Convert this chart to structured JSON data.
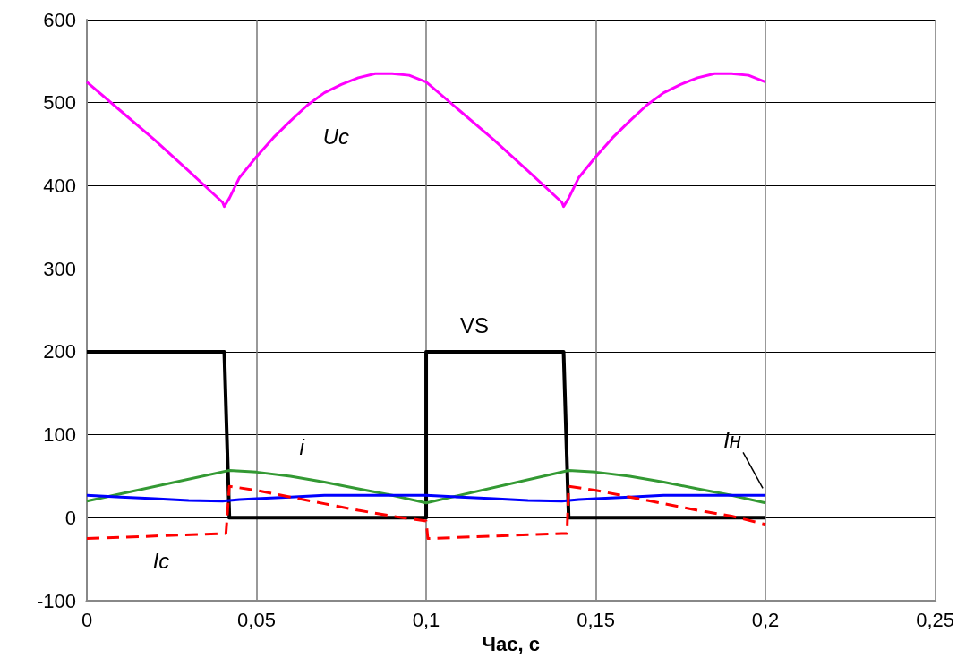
{
  "chart_data": {
    "type": "line",
    "xlabel": "Час, с",
    "xlim": [
      0,
      0.25
    ],
    "xticks": [
      0,
      {
        "value": 0.05,
        "label": "0,05"
      },
      {
        "value": 0.1,
        "label": "0,1"
      },
      {
        "value": 0.15,
        "label": "0,15"
      },
      {
        "value": 0.2,
        "label": "0,2"
      },
      {
        "value": 0.25,
        "label": "0,25"
      }
    ],
    "ylim": [
      -100,
      600
    ],
    "yticks": [
      -100,
      0,
      100,
      200,
      300,
      400,
      500,
      600
    ],
    "grid": true,
    "legend": false,
    "marker": "none",
    "series": [
      {
        "name": "Uc",
        "color": "#ff00ff",
        "x": [
          0,
          0.01,
          0.02,
          0.03,
          0.04,
          0.0405,
          0.042,
          0.045,
          0.05,
          0.055,
          0.06,
          0.065,
          0.07,
          0.075,
          0.08,
          0.085,
          0.09,
          0.095,
          0.1,
          0.11,
          0.12,
          0.13,
          0.14,
          0.1405,
          0.142,
          0.145,
          0.15,
          0.155,
          0.16,
          0.165,
          0.17,
          0.175,
          0.18,
          0.185,
          0.19,
          0.195,
          0.2
        ],
        "values": [
          525,
          490,
          455,
          418,
          380,
          375,
          385,
          410,
          435,
          458,
          478,
          497,
          512,
          522,
          530,
          535,
          535,
          533,
          525,
          490,
          455,
          418,
          380,
          375,
          385,
          410,
          435,
          458,
          478,
          497,
          512,
          522,
          530,
          535,
          535,
          533,
          525
        ]
      },
      {
        "name": "VS",
        "color": "#000000",
        "line_style": "solid",
        "x": [
          0,
          0.0405,
          0.042,
          0.1,
          0.1,
          0.1405,
          0.142,
          0.2
        ],
        "values": [
          200,
          200,
          0,
          0,
          200,
          200,
          0,
          0
        ]
      },
      {
        "name": "i",
        "color": "#339933",
        "x": [
          0,
          0.042,
          0.05,
          0.06,
          0.07,
          0.08,
          0.09,
          0.1,
          0.142,
          0.15,
          0.16,
          0.17,
          0.18,
          0.19,
          0.2
        ],
        "values": [
          20,
          57,
          55,
          50,
          43,
          35,
          27,
          18,
          57,
          55,
          50,
          43,
          35,
          27,
          18
        ]
      },
      {
        "name": "Iн",
        "color": "#0000ff",
        "x": [
          0,
          0.01,
          0.02,
          0.03,
          0.04,
          0.045,
          0.05,
          0.06,
          0.07,
          0.1,
          0.11,
          0.12,
          0.13,
          0.14,
          0.145,
          0.15,
          0.16,
          0.17,
          0.2
        ],
        "values": [
          27,
          25,
          23,
          21,
          20,
          22,
          23,
          25,
          27,
          27,
          25,
          23,
          21,
          20,
          22,
          23,
          25,
          27,
          27
        ]
      },
      {
        "name": "Ic",
        "color": "#ff0000",
        "line_style": "dashed",
        "x": [
          0,
          0.02,
          0.04,
          0.041,
          0.042,
          0.05,
          0.06,
          0.07,
          0.08,
          0.09,
          0.1,
          0.1005,
          0.12,
          0.14,
          0.1415,
          0.142,
          0.15,
          0.16,
          0.17,
          0.18,
          0.19,
          0.2
        ],
        "values": [
          -25,
          -22,
          -19,
          -19,
          38,
          33,
          25,
          17,
          9,
          2,
          -4,
          -25,
          -22,
          -19,
          -19,
          38,
          33,
          25,
          17,
          9,
          2,
          -8
        ]
      }
    ]
  }
}
